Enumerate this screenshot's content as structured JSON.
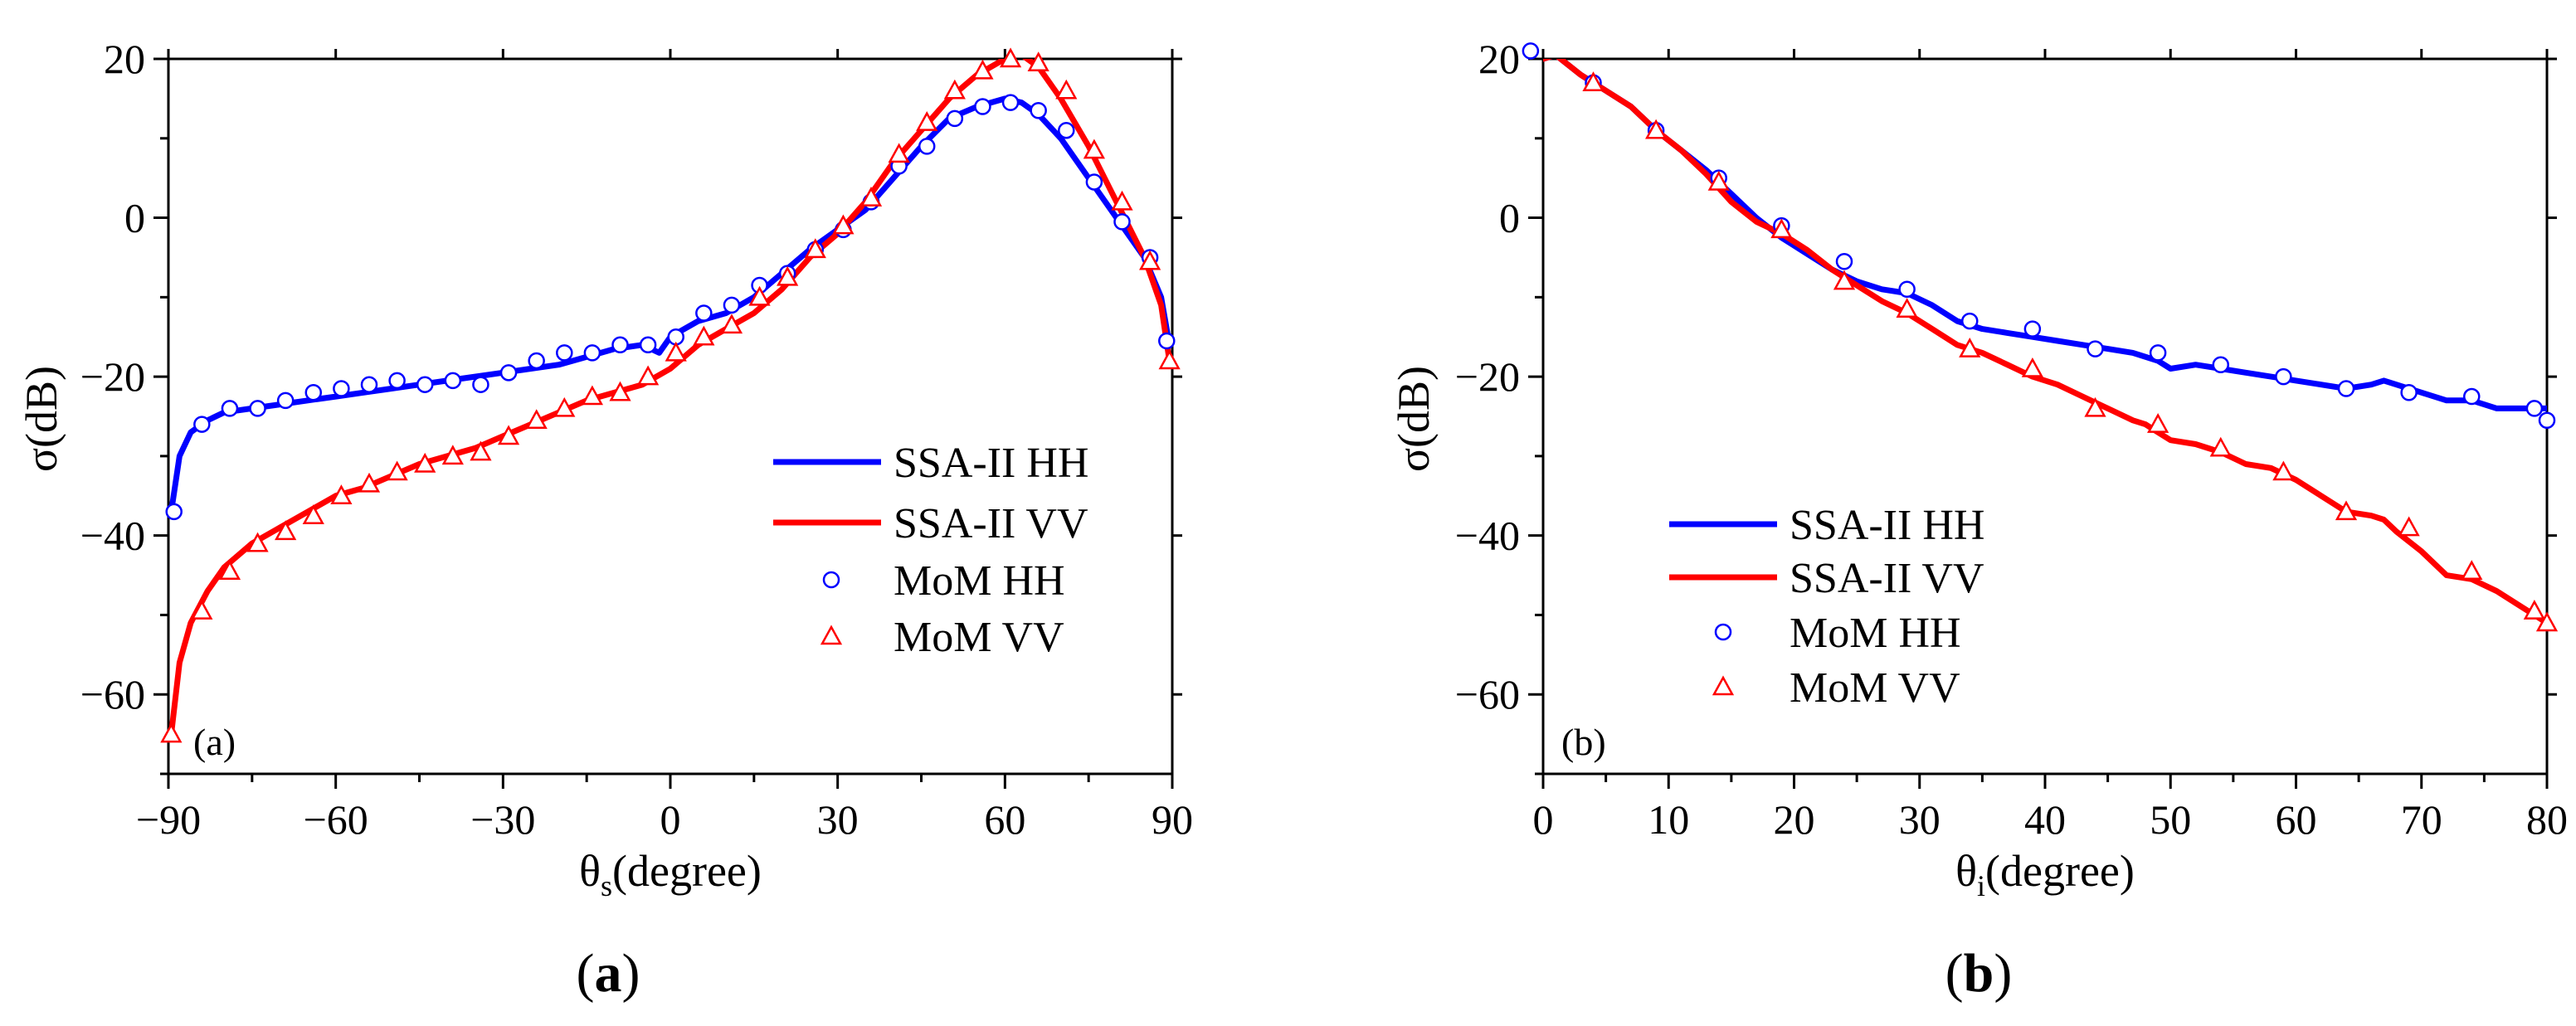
{
  "chart_data": [
    {
      "type": "line",
      "panel": "a",
      "caption": "a",
      "inset_label": "(a)",
      "xlabel_main": "θ",
      "xlabel_sub": "s",
      "xlabel_rest": "(degree)",
      "ylabel": "σ(dB)",
      "xlim": [
        -90,
        90
      ],
      "ylim": [
        -70,
        20
      ],
      "xticks": [
        -90,
        -60,
        -30,
        0,
        30,
        60,
        90
      ],
      "xtick_labels": [
        "−90",
        "−60",
        "−30",
        "0",
        "30",
        "60",
        "90"
      ],
      "yticks": [
        -60,
        -40,
        -20,
        0,
        20
      ],
      "ytick_labels": [
        "−60",
        "−40",
        "−20",
        "0",
        "20"
      ],
      "legend_position": "center-right",
      "series": [
        {
          "name": "SSA-II HH",
          "kind": "line",
          "color": "#0000ff",
          "x": [
            -89.5,
            -88,
            -86,
            -83,
            -80,
            -75,
            -70,
            -65,
            -60,
            -55,
            -50,
            -45,
            -40,
            -35,
            -30,
            -25,
            -20,
            -15,
            -10,
            -5,
            -2,
            0,
            5,
            10,
            15,
            20,
            25,
            30,
            35,
            40,
            45,
            50,
            55,
            60,
            63,
            66,
            70,
            75,
            80,
            85,
            88,
            89.5
          ],
          "y": [
            -37,
            -30,
            -27,
            -25.5,
            -24.5,
            -24,
            -23.5,
            -23,
            -22.5,
            -22,
            -21.5,
            -21,
            -20.5,
            -20,
            -19.5,
            -19,
            -18.5,
            -17.5,
            -16.5,
            -16,
            -17,
            -15,
            -13,
            -12,
            -10,
            -7,
            -4,
            -1.5,
            1,
            5,
            9,
            12.5,
            14,
            15,
            14.5,
            13,
            10,
            5,
            0,
            -5,
            -10,
            -16
          ]
        },
        {
          "name": "SSA-II VV",
          "kind": "line",
          "color": "#ff0000",
          "x": [
            -89.5,
            -88,
            -86,
            -83,
            -80,
            -75,
            -70,
            -65,
            -60,
            -55,
            -50,
            -45,
            -40,
            -35,
            -30,
            -25,
            -20,
            -15,
            -10,
            -5,
            0,
            5,
            10,
            15,
            20,
            25,
            30,
            35,
            40,
            45,
            50,
            55,
            60,
            63,
            66,
            70,
            75,
            80,
            85,
            88,
            89.5
          ],
          "y": [
            -65,
            -56,
            -51,
            -47,
            -44,
            -41,
            -39,
            -37,
            -35,
            -34,
            -32.5,
            -31,
            -30,
            -29,
            -27.5,
            -26,
            -24.5,
            -23,
            -22,
            -21,
            -19,
            -16,
            -14,
            -12,
            -9,
            -5,
            -2,
            2,
            7,
            11,
            15,
            18,
            20,
            20.5,
            19,
            15,
            9,
            2,
            -5,
            -11,
            -18
          ]
        },
        {
          "name": "MoM HH",
          "kind": "marker",
          "marker": "circle",
          "color": "#0000ff",
          "x": [
            -89,
            -84,
            -79,
            -74,
            -69,
            -64,
            -59,
            -54,
            -49,
            -44,
            -39,
            -34,
            -29,
            -24,
            -19,
            -14,
            -9,
            -4,
            1,
            6,
            11,
            16,
            21,
            26,
            31,
            36,
            41,
            46,
            51,
            56,
            61,
            66,
            71,
            76,
            81,
            86,
            89
          ],
          "y": [
            -37,
            -26,
            -24,
            -24,
            -23,
            -22,
            -21.5,
            -21,
            -20.5,
            -21,
            -20.5,
            -21,
            -19.5,
            -18,
            -17,
            -17,
            -16,
            -16,
            -15,
            -12,
            -11,
            -8.5,
            -7,
            -4,
            -1.5,
            2,
            6.5,
            9,
            12.5,
            14,
            14.5,
            13.5,
            11,
            4.5,
            -0.5,
            -5,
            -15.5
          ]
        },
        {
          "name": "MoM VV",
          "kind": "marker",
          "marker": "triangle",
          "color": "#ff0000",
          "x": [
            -89.5,
            -84,
            -79,
            -74,
            -69,
            -64,
            -59,
            -54,
            -49,
            -44,
            -39,
            -34,
            -29,
            -24,
            -19,
            -14,
            -9,
            -4,
            1,
            6,
            11,
            16,
            21,
            26,
            31,
            36,
            41,
            46,
            51,
            56,
            61,
            66,
            71,
            76,
            81,
            86,
            89.5
          ],
          "y": [
            -65,
            -49.5,
            -44.5,
            -41,
            -39.5,
            -37.5,
            -35,
            -33.5,
            -32,
            -31,
            -30,
            -29.5,
            -27.5,
            -25.5,
            -24,
            -22.5,
            -22,
            -20,
            -17,
            -15,
            -13.5,
            -10,
            -7.5,
            -4,
            -1,
            2.5,
            8,
            12,
            16,
            18.5,
            20,
            19.5,
            16,
            8.5,
            2,
            -5.5,
            -18
          ]
        }
      ]
    },
    {
      "type": "line",
      "panel": "b",
      "caption": "b",
      "inset_label": "(b)",
      "xlabel_main": "θ",
      "xlabel_sub": "i",
      "xlabel_rest": "(degree)",
      "ylabel": "σ(dB)",
      "xlim": [
        0,
        80
      ],
      "ylim": [
        -70,
        20
      ],
      "xticks": [
        0,
        10,
        20,
        30,
        40,
        50,
        60,
        70,
        80
      ],
      "xtick_labels": [
        "0",
        "10",
        "20",
        "30",
        "40",
        "50",
        "60",
        "70",
        "80"
      ],
      "yticks": [
        -60,
        -40,
        -20,
        0,
        20
      ],
      "ytick_labels": [
        "−60",
        "−40",
        "−20",
        "0",
        "20"
      ],
      "legend_position": "lower-left",
      "series": [
        {
          "name": "SSA-II HH",
          "kind": "line",
          "color": "#0000ff",
          "x": [
            0,
            1,
            3,
            5,
            7,
            9,
            11,
            13,
            14,
            15,
            17,
            19,
            21,
            23,
            25,
            27,
            29,
            31,
            33,
            35,
            37,
            39,
            41,
            43,
            45,
            47,
            49,
            50,
            52,
            54,
            56,
            58,
            60,
            62,
            64,
            66,
            67,
            68,
            70,
            72,
            74,
            76,
            78,
            80
          ],
          "y": [
            20,
            20.5,
            18,
            16,
            14,
            11,
            8.5,
            6,
            4.5,
            3,
            0,
            -2.5,
            -4.5,
            -6.5,
            -8,
            -9,
            -9.5,
            -11,
            -13,
            -14,
            -14.5,
            -15,
            -15.5,
            -16,
            -16.5,
            -17,
            -18,
            -19,
            -18.5,
            -19,
            -19.5,
            -20,
            -20.5,
            -21,
            -21.5,
            -21,
            -20.5,
            -21,
            -22,
            -23,
            -23,
            -24,
            -24,
            -24
          ]
        },
        {
          "name": "SSA-II VV",
          "kind": "line",
          "color": "#ff0000",
          "x": [
            0,
            1,
            3,
            5,
            7,
            9,
            11,
            13,
            15,
            17,
            19,
            21,
            23,
            25,
            27,
            29,
            31,
            33,
            35,
            37,
            39,
            41,
            43,
            45,
            47,
            48,
            49,
            50,
            52,
            54,
            56,
            58,
            60,
            62,
            64,
            66,
            67,
            68,
            70,
            72,
            74,
            76,
            78,
            80
          ],
          "y": [
            20,
            20.5,
            18,
            16,
            14,
            11,
            8.5,
            5.5,
            2,
            -0.5,
            -2,
            -4,
            -6.5,
            -8.5,
            -10.5,
            -12,
            -14,
            -16,
            -17,
            -18.5,
            -20,
            -21,
            -22.5,
            -24,
            -25.5,
            -26,
            -27,
            -28,
            -28.5,
            -29.5,
            -31,
            -31.5,
            -33,
            -35,
            -37,
            -37.5,
            -38,
            -39.5,
            -42,
            -45,
            -45.5,
            -47,
            -49,
            -51
          ]
        },
        {
          "name": "MoM HH",
          "kind": "marker",
          "marker": "circle",
          "color": "#0000ff",
          "x": [
            -1,
            4,
            9,
            14,
            19,
            24,
            29,
            34,
            39,
            44,
            49,
            54,
            59,
            64,
            69,
            74,
            79,
            80
          ],
          "y": [
            21,
            17,
            11,
            5,
            -1,
            -5.5,
            -9,
            -13,
            -14,
            -16.5,
            -17,
            -18.5,
            -20,
            -21.5,
            -22,
            -22.5,
            -24,
            -25.5
          ]
        },
        {
          "name": "MoM VV",
          "kind": "marker",
          "marker": "triangle",
          "color": "#ff0000",
          "x": [
            4,
            9,
            14,
            19,
            24,
            29,
            34,
            39,
            44,
            49,
            54,
            59,
            64,
            69,
            74,
            79,
            80
          ],
          "y": [
            17,
            11,
            4.5,
            -1.5,
            -8,
            -11.5,
            -16.5,
            -19,
            -24,
            -26,
            -29,
            -32,
            -37,
            -39,
            -44.5,
            -49.5,
            -51
          ]
        }
      ]
    }
  ]
}
